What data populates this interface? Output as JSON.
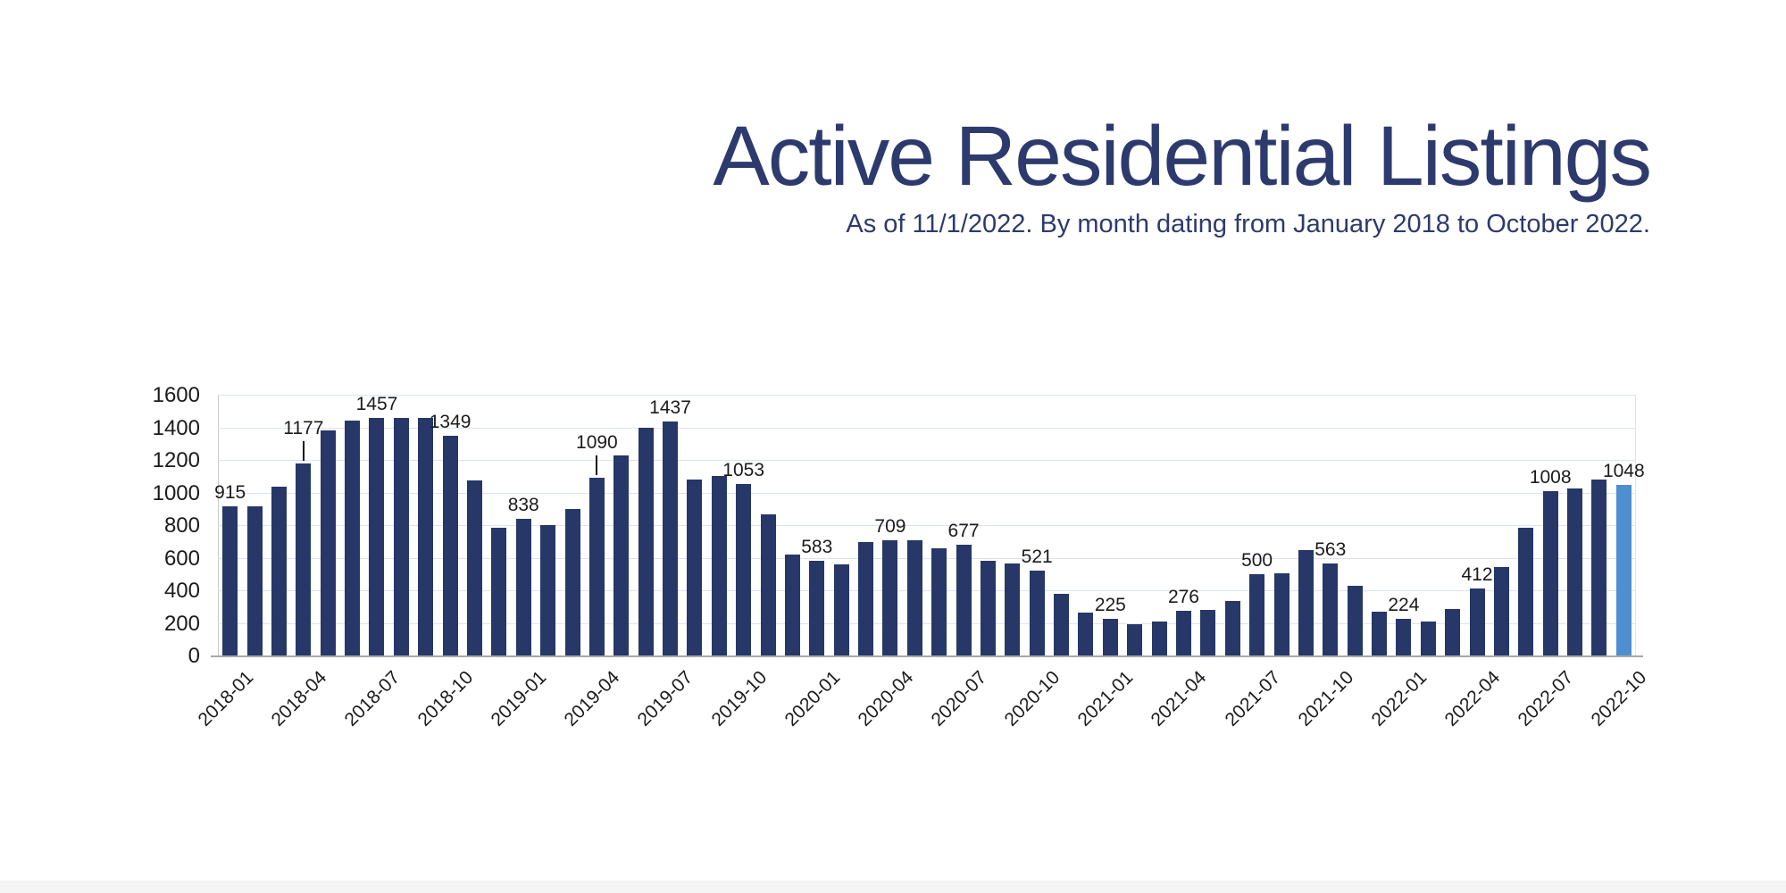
{
  "header": {
    "title": "Active Residential Listings",
    "subtitle": "As of 11/1/2022. By month dating from January 2018 to October 2022.",
    "title_color": "#2d3a6e"
  },
  "chart_data": {
    "type": "bar",
    "title": "Active Residential Listings",
    "subtitle": "As of 11/1/2022. By month dating from January 2018 to October 2022.",
    "x": [
      "2018-01",
      "2018-02",
      "2018-03",
      "2018-04",
      "2018-05",
      "2018-06",
      "2018-07",
      "2018-08",
      "2018-09",
      "2018-10",
      "2018-11",
      "2018-12",
      "2019-01",
      "2019-02",
      "2019-03",
      "2019-04",
      "2019-05",
      "2019-06",
      "2019-07",
      "2019-08",
      "2019-09",
      "2019-10",
      "2019-11",
      "2019-12",
      "2020-01",
      "2020-02",
      "2020-03",
      "2020-04",
      "2020-05",
      "2020-06",
      "2020-07",
      "2020-08",
      "2020-09",
      "2020-10",
      "2020-11",
      "2020-12",
      "2021-01",
      "2021-02",
      "2021-03",
      "2021-04",
      "2021-05",
      "2021-06",
      "2021-07",
      "2021-08",
      "2021-09",
      "2021-10",
      "2021-11",
      "2021-12",
      "2022-01",
      "2022-02",
      "2022-03",
      "2022-04",
      "2022-05",
      "2022-06",
      "2022-07",
      "2022-08",
      "2022-09",
      "2022-10"
    ],
    "values": [
      915,
      915,
      1035,
      1177,
      1380,
      1440,
      1457,
      1460,
      1460,
      1349,
      1075,
      785,
      838,
      800,
      900,
      1090,
      1230,
      1395,
      1437,
      1080,
      1100,
      1053,
      865,
      620,
      583,
      560,
      695,
      709,
      705,
      655,
      677,
      580,
      565,
      521,
      380,
      265,
      225,
      190,
      210,
      276,
      280,
      335,
      500,
      505,
      645,
      563,
      430,
      270,
      224,
      210,
      285,
      412,
      540,
      785,
      1008,
      1025,
      1080,
      1048
    ],
    "data_label_indices": [
      0,
      3,
      6,
      9,
      12,
      15,
      18,
      21,
      24,
      27,
      30,
      33,
      36,
      39,
      42,
      45,
      48,
      51,
      54,
      57
    ],
    "data_labels": [
      "915",
      "1177",
      "1457",
      "1349",
      "838",
      "1090",
      "1437",
      "1053",
      "583",
      "709",
      "677",
      "521",
      "225",
      "276",
      "500",
      "563",
      "224",
      "412",
      "1008",
      "1048"
    ],
    "leader_line_months": [
      "2018-04",
      "2019-04"
    ],
    "highlight_month": "2022-10",
    "xtick_labels": [
      "2018-01",
      "2018-04",
      "2018-07",
      "2018-10",
      "2019-01",
      "2019-04",
      "2019-07",
      "2019-10",
      "2020-01",
      "2020-04",
      "2020-07",
      "2020-10",
      "2021-01",
      "2021-04",
      "2021-07",
      "2021-10",
      "2022-01",
      "2022-04",
      "2022-07",
      "2022-10"
    ],
    "yticks": [
      0,
      200,
      400,
      600,
      800,
      1000,
      1200,
      1400,
      1600
    ],
    "ylim": [
      0,
      1600
    ],
    "grid": "horizontal",
    "legend": "none",
    "bar_color": "#263768",
    "highlight_color": "#4e8fd0",
    "gridline_color": "#dde3ef",
    "axis_color": "#a8a8a8",
    "text_color": "#1b1b1b"
  }
}
